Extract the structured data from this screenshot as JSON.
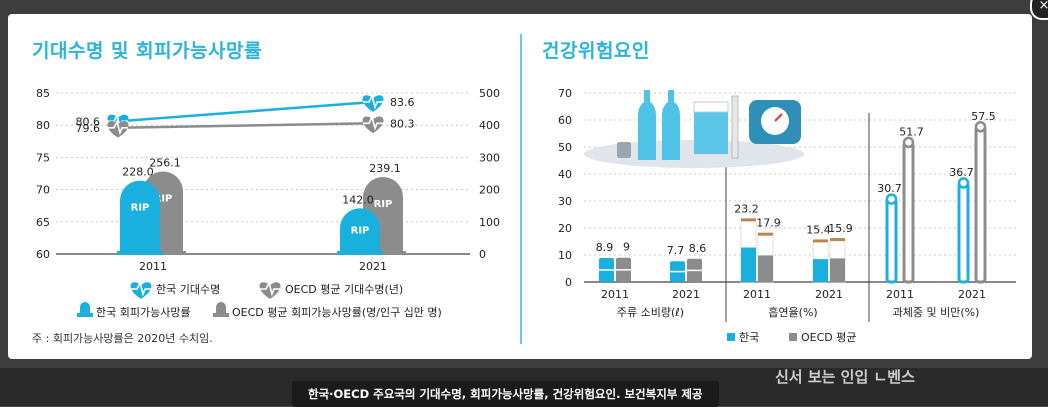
{
  "panel": {
    "left_title": "기대수명 및 회피가능사망률",
    "right_title": "건강위험요인",
    "note": "주 : 회피가능사망률은 2020년 수치임.",
    "caption": "한국·OECD 주요국의 기대수명, 회피가능사망률, 건강위험요인. 보건복지부 제공",
    "background_text": "신서 보는 인입 ㄴ벤스",
    "close_icon": "×"
  },
  "colors": {
    "korea": "#1ab0de",
    "oecd": "#8c8c8c",
    "title": "#2ab4da",
    "tobacco": "#b9874a"
  },
  "chart_data": [
    {
      "type": "line",
      "title": "",
      "x": [
        "2011",
        "2021"
      ],
      "ylim": [
        60,
        85
      ],
      "yticks": [
        60,
        65,
        70,
        75,
        80,
        85
      ],
      "series": [
        {
          "name": "한국 기대수명",
          "values": [
            80.6,
            83.6
          ]
        },
        {
          "name": "OECD 평균 기대수명(년)",
          "values": [
            79.6,
            80.3
          ]
        }
      ],
      "secondary": {
        "type": "bar",
        "ylim": [
          0,
          500
        ],
        "yticks": [
          0,
          100,
          200,
          300,
          400,
          500
        ],
        "series": [
          {
            "name": "한국 회피가능사망률",
            "values": [
              228.0,
              142.0
            ]
          },
          {
            "name": "OECD 평균 회피가능사망률(명/인구 십만 명)",
            "values": [
              256.1,
              239.1
            ]
          }
        ],
        "icon_label": "RIP"
      },
      "legend": [
        {
          "label": "한국 기대수명",
          "icon": "heart-line-icon"
        },
        {
          "label": "OECD 평균 기대수명(년)",
          "icon": "heart-line-icon"
        },
        {
          "label": "한국 회피가능사망률",
          "icon": "tombstone-icon"
        },
        {
          "label": "OECD 평균 회피가능사망률(명/인구 십만 명)",
          "icon": "tombstone-icon"
        }
      ]
    },
    {
      "type": "bar",
      "title": "",
      "ylim": [
        0,
        70
      ],
      "yticks": [
        0,
        10,
        20,
        30,
        40,
        50,
        60,
        70
      ],
      "groups": [
        {
          "label": "주류 소비량(ℓ)",
          "categories": [
            "2011",
            "2021"
          ],
          "korea": [
            8.9,
            7.7
          ],
          "oecd": [
            9.0,
            8.6
          ]
        },
        {
          "label": "흡연율(%)",
          "categories": [
            "2011",
            "2021"
          ],
          "korea": [
            23.2,
            15.4
          ],
          "oecd": [
            17.9,
            15.9
          ]
        },
        {
          "label": "과체중 및 비만(%)",
          "categories": [
            "2011",
            "2021"
          ],
          "korea": [
            30.7,
            36.7
          ],
          "oecd": [
            51.7,
            57.5
          ]
        }
      ],
      "series": [
        {
          "name": "한국"
        },
        {
          "name": "OECD 평균"
        }
      ],
      "legend_position": "bottom"
    }
  ]
}
